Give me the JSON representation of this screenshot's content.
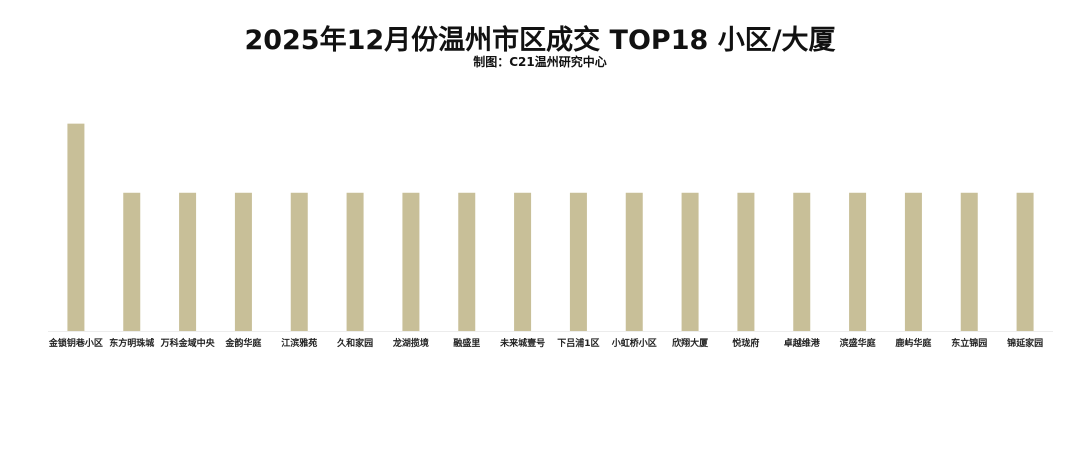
{
  "title": "2025年12月份温州市区成交 TOP18 小区/大厦",
  "subtitle": "制图：C21温州研究中心",
  "colors": {
    "bar": "#c8bf98",
    "axis": "#ececec"
  },
  "chart_data": {
    "type": "bar",
    "categories": [
      "金锁钥巷小区",
      "东方明珠城",
      "万科金域中央",
      "金韵华庭",
      "江滨雅苑",
      "久和家园",
      "龙湖揽境",
      "融盛里",
      "未来城壹号",
      "下吕浦1区",
      "小虹桥小区",
      "欣翔大厦",
      "悦珑府",
      "卓越维港",
      "滨盛华庭",
      "鹿屿华庭",
      "东立锦园",
      "锦延家园"
    ],
    "values": [
      3,
      2,
      2,
      2,
      2,
      2,
      2,
      2,
      2,
      2,
      2,
      2,
      2,
      2,
      2,
      2,
      2,
      2
    ],
    "ylim": [
      0,
      3.4
    ],
    "grid": false,
    "legend": "none"
  }
}
